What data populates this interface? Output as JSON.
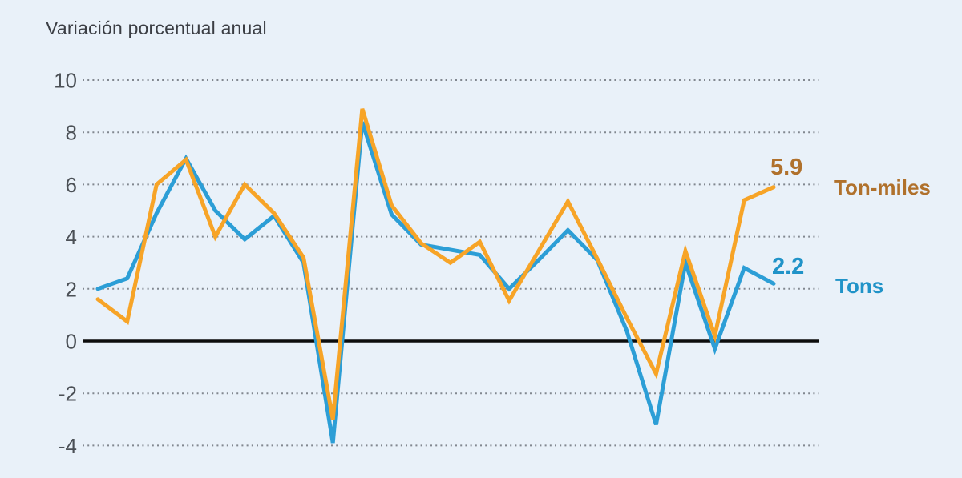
{
  "page": {
    "background": "#E9F1F9"
  },
  "title": "Variación porcentual anual",
  "labels": {
    "ton_miles_value": "5.9",
    "ton_miles_name": "Ton-miles",
    "tons_value": "2.2",
    "tons_name": "Tons"
  },
  "colors": {
    "background": "#E9F1F9",
    "ton_miles_line": "#F7A427",
    "tons_line": "#2C9ED6",
    "ton_miles_label": "#B0712C",
    "tons_label": "#2093C8",
    "gridline": "#81878F",
    "zero_line": "#0D0D0D",
    "tick_label": "#4B5056",
    "title": "#3B3E44"
  },
  "chart_data": {
    "type": "line",
    "title": "Variación porcentual anual",
    "xlabel": "",
    "ylabel": "",
    "y_ticks": [
      10,
      8,
      6,
      4,
      2,
      0,
      -2,
      -4
    ],
    "ylim": [
      -4.7,
      10.9
    ],
    "x_tick_labels_visible": false,
    "n_points": 24,
    "grid": "horizontal-dotted",
    "zero_line": true,
    "legend_position": "right-of-line-ends",
    "series": [
      {
        "name": "Ton-miles",
        "color": "#F7A427",
        "label_color": "#B0712C",
        "end_value_label": "5.9",
        "values": [
          1.6,
          0.75,
          6.0,
          6.95,
          4.0,
          6.0,
          4.9,
          3.2,
          -3.0,
          8.9,
          5.2,
          3.75,
          3.0,
          3.8,
          1.55,
          3.45,
          5.35,
          3.15,
          0.9,
          -1.25,
          3.45,
          0.2,
          5.4,
          5.9
        ]
      },
      {
        "name": "Tons",
        "color": "#2C9ED6",
        "label_color": "#2093C8",
        "end_value_label": "2.2",
        "values": [
          2.0,
          2.4,
          4.9,
          7.0,
          5.0,
          3.9,
          4.8,
          3.0,
          -3.9,
          8.4,
          4.85,
          3.7,
          3.5,
          3.3,
          2.0,
          3.1,
          4.25,
          3.1,
          0.4,
          -3.2,
          3.0,
          -0.3,
          2.8,
          2.2
        ]
      }
    ]
  }
}
